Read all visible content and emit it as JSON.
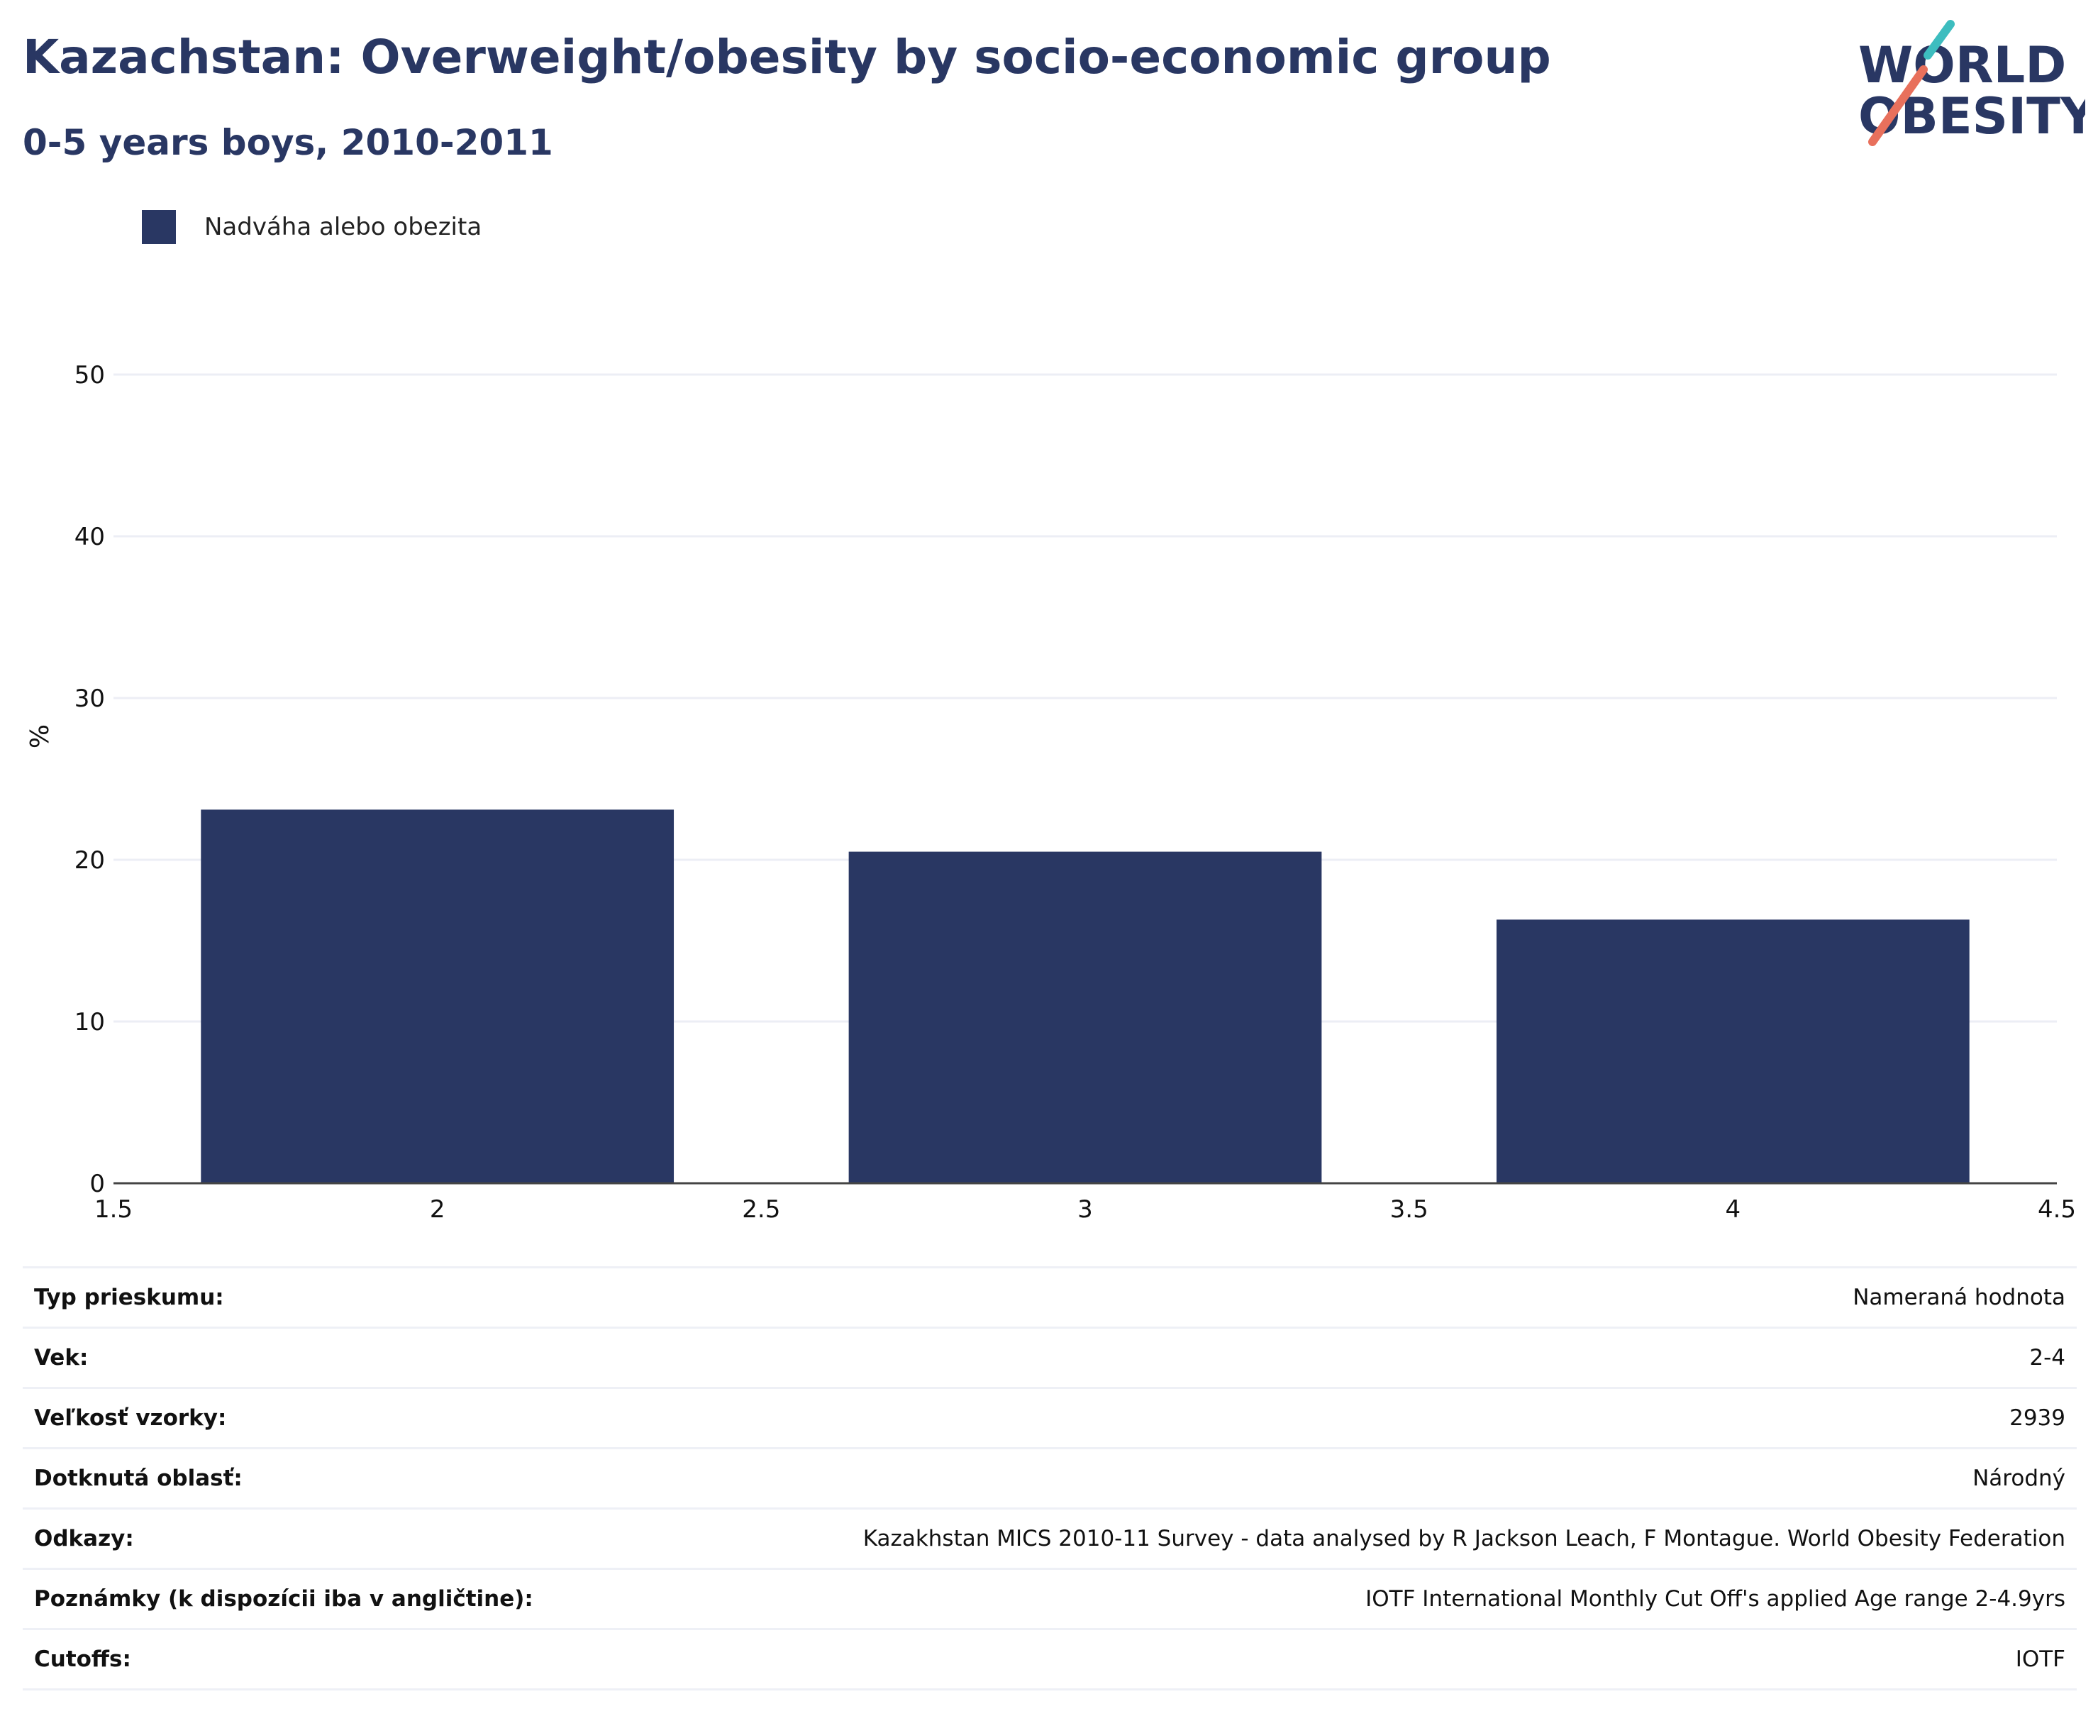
{
  "header": {
    "title": "Kazachstan: Overweight/obesity by socio-economic group",
    "subtitle": "0-5 years boys, 2010-2011"
  },
  "logo": {
    "line1": "WORLD",
    "line2": "OBESITY"
  },
  "colors": {
    "bar": "#293763",
    "grid": "#eceef5",
    "text": "#293763",
    "logo_teal": "#3dbdbf",
    "logo_red": "#e8705c"
  },
  "legend": {
    "label": "Nadváha alebo obezita"
  },
  "chart_data": {
    "type": "bar",
    "title": "Kazachstan: Overweight/obesity by socio-economic group",
    "subtitle": "0-5 years boys, 2010-2011",
    "xlabel": "",
    "ylabel": "%",
    "xlim": [
      1.5,
      4.5
    ],
    "ylim": [
      0,
      55
    ],
    "x_ticks": [
      "1.5",
      "2",
      "2.5",
      "3",
      "3.5",
      "4",
      "4.5"
    ],
    "y_ticks": [
      "0",
      "10",
      "20",
      "30",
      "40",
      "50"
    ],
    "grid": true,
    "legend_position": "top-left",
    "series": [
      {
        "name": "Nadváha alebo obezita",
        "x": [
          2,
          3,
          4
        ],
        "values": [
          23.1,
          20.5,
          16.3
        ]
      }
    ]
  },
  "info": [
    {
      "key": "Typ prieskumu:",
      "value": "Nameraná hodnota"
    },
    {
      "key": "Vek:",
      "value": "2-4"
    },
    {
      "key": "Veľkosť vzorky:",
      "value": "2939"
    },
    {
      "key": "Dotknutá oblasť:",
      "value": "Národný"
    },
    {
      "key": "Odkazy:",
      "value": "Kazakhstan MICS 2010-11 Survey - data analysed by R Jackson Leach, F Montague. World Obesity Federation"
    },
    {
      "key": "Poznámky (k dispozícii iba v angličtine):",
      "value": "IOTF International Monthly Cut Off's applied Age range 2-4.9yrs"
    },
    {
      "key": "Cutoffs:",
      "value": "IOTF"
    }
  ]
}
